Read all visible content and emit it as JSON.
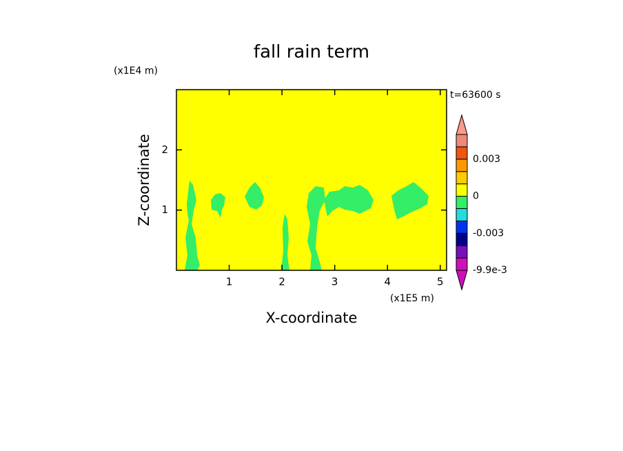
{
  "chart_data": {
    "type": "contour",
    "title": "fall rain term",
    "x_label": "X-coordinate",
    "y_label": "Z-coordinate",
    "x_unit": "(x1E5 m)",
    "y_unit": "(x1E4 m)",
    "annotation": "t=63600 s",
    "xlim": [
      0,
      5.12
    ],
    "xticks": [
      1,
      2,
      3,
      4,
      5
    ],
    "ylim": [
      0,
      3
    ],
    "yticks": [
      1,
      2
    ],
    "background_color": "#ffff00",
    "feature_color": "#33ee66",
    "colorbar": {
      "levels": [
        -0.0099,
        -0.0066,
        -0.0045,
        -0.003,
        -0.002,
        -0.001,
        0,
        0.001,
        0.002,
        0.003,
        0.004,
        0.005
      ],
      "colors": [
        "#cc11bb",
        "#7711bb",
        "#000088",
        "#0033ee",
        "#22dddd",
        "#33ee66",
        "#ffff00",
        "#ffcc00",
        "#ff9900",
        "#ee5511",
        "#ee8877"
      ],
      "under_color": "#cc11bb",
      "over_color": "#ff9988",
      "ticks": [
        {
          "value": -0.0099,
          "label": "-9.9e-3"
        },
        -0.003,
        0,
        0.003
      ]
    }
  }
}
